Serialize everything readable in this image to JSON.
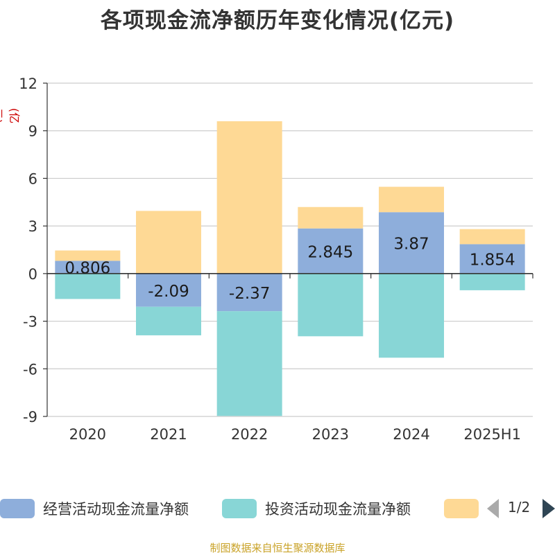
{
  "title": "各项现金流净额历年变化情况(亿元)",
  "unit_label": "(亿元)",
  "source": "制图数据来自恒生聚源数据库",
  "legend": {
    "items": [
      {
        "label": "经营活动现金流量净额",
        "color": "#8eaedb"
      },
      {
        "label": "投资活动现金流量净额",
        "color": "#88d6d6"
      },
      {
        "label": "",
        "color": "#fed995"
      }
    ],
    "page_text": "1/2"
  },
  "chart_data": {
    "type": "bar",
    "stacked": true,
    "categories": [
      "2020",
      "2021",
      "2022",
      "2023",
      "2024",
      "2025H1"
    ],
    "series": [
      {
        "name": "经营活动现金流量净额",
        "color": "#8eaedb",
        "values": [
          0.806,
          -2.09,
          -2.37,
          2.845,
          3.87,
          1.854
        ],
        "labels": [
          "0.806",
          "-2.09",
          "-2.37",
          "2.845",
          "3.87",
          "1.854"
        ]
      },
      {
        "name": "投资活动现金流量净额",
        "color": "#88d6d6",
        "values": [
          -1.6,
          -1.8,
          -6.6,
          -3.95,
          -5.3,
          -1.05
        ]
      },
      {
        "name": "",
        "color": "#fed995",
        "values": [
          0.65,
          3.95,
          9.6,
          1.35,
          1.6,
          0.95
        ]
      }
    ],
    "ylim": [
      -9,
      12
    ],
    "yticks": [
      12,
      9,
      6,
      3,
      0,
      -3,
      -6,
      -9
    ],
    "grid": true,
    "legend_position": "bottom"
  }
}
